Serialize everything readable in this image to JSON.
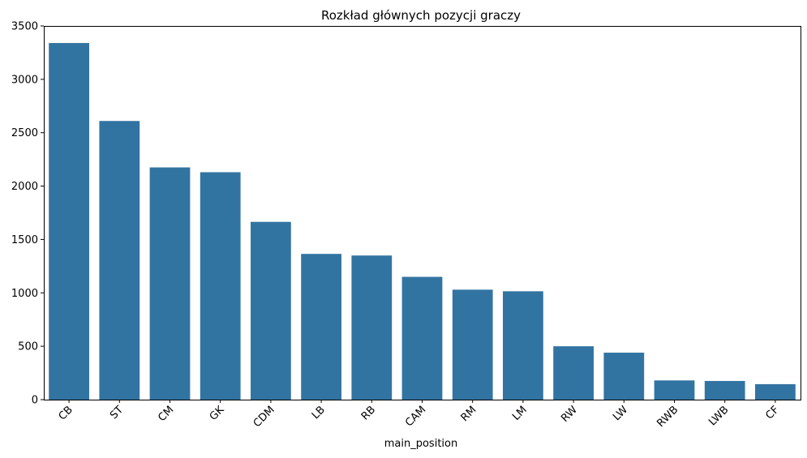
{
  "chart_data": {
    "type": "bar",
    "title": "Rozkład głównych pozycji graczy",
    "xlabel": "main_position",
    "ylabel": "",
    "categories": [
      "CB",
      "ST",
      "CM",
      "GK",
      "CDM",
      "LB",
      "RB",
      "CAM",
      "RM",
      "LM",
      "RW",
      "LW",
      "RWB",
      "LWB",
      "CF"
    ],
    "values": [
      3340,
      2610,
      2175,
      2130,
      1665,
      1365,
      1350,
      1150,
      1030,
      1015,
      500,
      440,
      180,
      175,
      145
    ],
    "ylim": [
      0,
      3500
    ],
    "yticks": [
      0,
      500,
      1000,
      1500,
      2000,
      2500,
      3000,
      3500
    ],
    "bar_color": "#3274a1",
    "grid": false,
    "legend": "none"
  }
}
